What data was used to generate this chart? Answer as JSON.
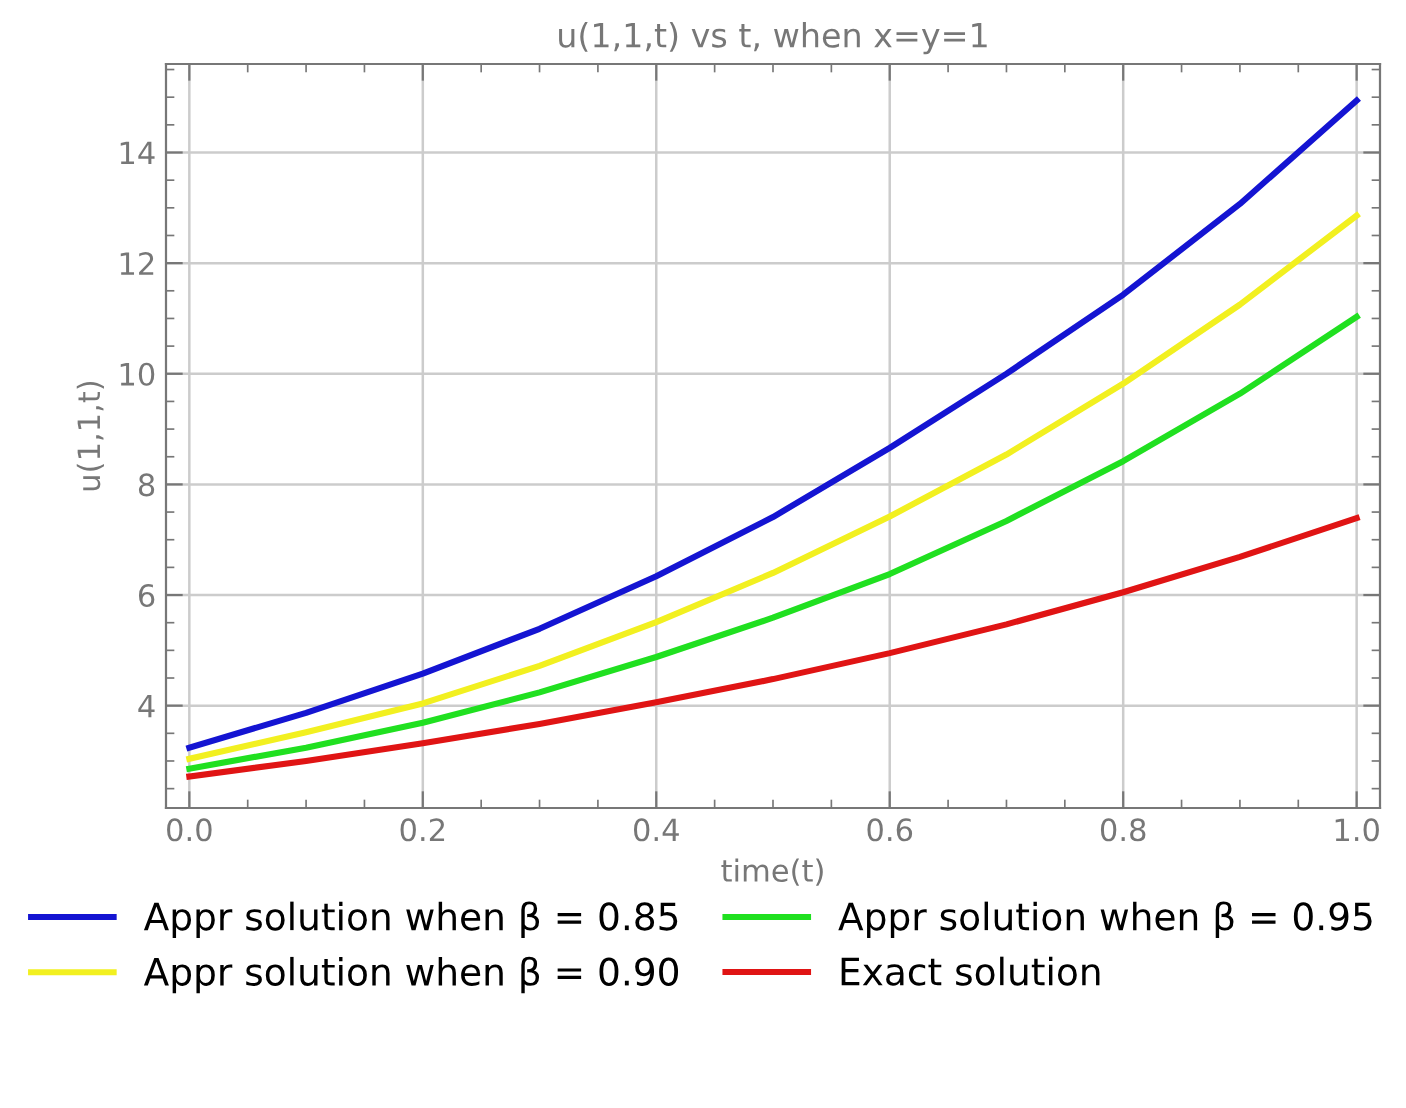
{
  "chart_data": {
    "type": "line",
    "title": "u(1,1,t) vs t, when x=y=1",
    "xlabel": "time(t)",
    "ylabel": "u(1,1,t)",
    "x": [
      0,
      0.1,
      0.2,
      0.3,
      0.4,
      0.5,
      0.6,
      0.7,
      0.8,
      0.9,
      1.0
    ],
    "series": [
      {
        "name": "Appr solution when β = 0.85",
        "color": "#1414d2",
        "values": [
          3.24,
          3.87,
          4.58,
          5.39,
          6.34,
          7.41,
          8.66,
          10.0,
          11.43,
          13.07,
          14.94
        ]
      },
      {
        "name": "Appr solution when β = 0.90",
        "color": "#f2f020",
        "values": [
          3.04,
          3.52,
          4.04,
          4.72,
          5.51,
          6.4,
          7.42,
          8.54,
          9.82,
          11.25,
          12.86
        ]
      },
      {
        "name": "Appr solution when β = 0.95",
        "color": "#20e020",
        "values": [
          2.86,
          3.24,
          3.69,
          4.24,
          4.88,
          5.59,
          6.38,
          7.34,
          8.42,
          9.64,
          11.03
        ]
      },
      {
        "name": "Exact solution",
        "color": "#e01414",
        "values": [
          2.72,
          3.0,
          3.32,
          3.67,
          4.06,
          4.48,
          4.95,
          5.47,
          6.05,
          6.69,
          7.39
        ]
      }
    ],
    "xlim": [
      -0.02,
      1.02
    ],
    "ylim": [
      2.15,
      15.6
    ],
    "xticks": [
      {
        "value": 0.0,
        "label": "0.0"
      },
      0.2,
      0.4,
      0.6,
      0.8,
      {
        "value": 1.0,
        "label": "1.0"
      }
    ],
    "yticks": [
      4,
      6,
      8,
      10,
      12,
      14
    ],
    "grid": true,
    "legend": "bottom",
    "line_style": "solid",
    "marker": "none"
  }
}
